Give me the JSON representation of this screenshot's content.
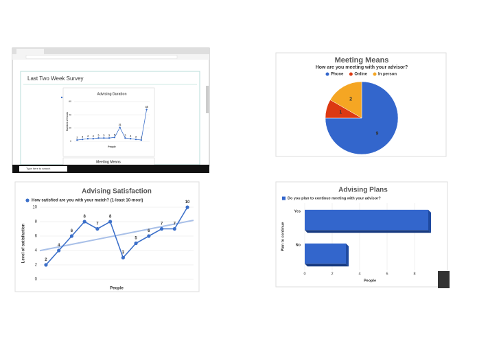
{
  "browser": {
    "heading": "Last Two Week Survey",
    "next_chart_title": "Meeting Means",
    "taskbar_search": "Type here to search"
  },
  "chart_data": [
    {
      "type": "line",
      "title": "Advising Duration",
      "y_label": "Number of hours",
      "x_label": "People",
      "series": [
        {
          "color": "#3b6fc9",
          "values": [
            2,
            3,
            4,
            4,
            5,
            5,
            5,
            6,
            21,
            5,
            4,
            3,
            2,
            48
          ]
        }
      ],
      "ylim": [
        0,
        60
      ],
      "yticks": [
        0,
        20,
        40,
        60
      ],
      "grid": true
    },
    {
      "type": "pie",
      "title": "Meeting Means",
      "subtitle": "How are you meeting with your advisor?",
      "categories": [
        "Phone",
        "Online",
        "In person"
      ],
      "values": [
        9,
        1,
        2
      ],
      "colors": [
        "#3366cc",
        "#dc3912",
        "#f5a623"
      ]
    },
    {
      "type": "line",
      "title": "Advising Satisfaction",
      "y_label": "Level of satisfaction",
      "x_label": "People",
      "series": [
        {
          "name": "How satisfied are you with your match? (1-least 10-most)",
          "color": "#3b6fc9",
          "values": [
            2,
            4,
            6,
            8,
            7,
            8,
            3,
            5,
            6,
            7,
            7,
            10
          ]
        }
      ],
      "trendline": true,
      "trend_color": "#a9c0e8",
      "ylim": [
        0,
        10
      ],
      "yticks": [
        0,
        2,
        4,
        6,
        8,
        10
      ],
      "grid": true
    },
    {
      "type": "hbar",
      "title": "Advising Plans",
      "y_label": "Plan to continue",
      "x_label": "People",
      "categories": [
        "Yes",
        "No"
      ],
      "series": [
        {
          "name": "Do you plan to continue meeting with your advisor?",
          "color": "#3366cc",
          "values": [
            9,
            3
          ]
        }
      ],
      "xlim": [
        0,
        10
      ],
      "xticks": [
        0,
        2,
        4,
        6,
        8
      ],
      "grid": true
    }
  ]
}
